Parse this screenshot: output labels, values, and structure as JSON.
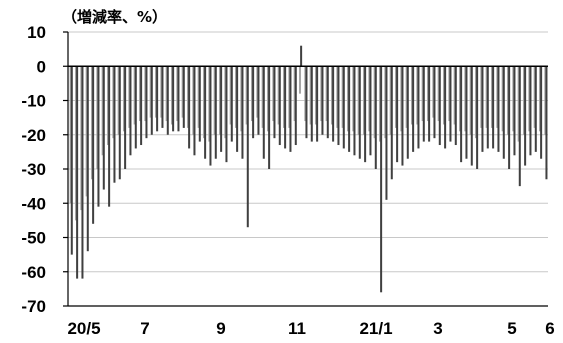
{
  "chart_data": {
    "type": "bar",
    "ylabel": "（増減率、%）",
    "ylim": [
      -70,
      10
    ],
    "yticks": [
      10,
      0,
      -10,
      -20,
      -30,
      -40,
      -50,
      -60,
      -70
    ],
    "xtick_labels": [
      "20/5",
      "7",
      "9",
      "11",
      "21/1",
      "3",
      "5",
      "6"
    ],
    "colors": {
      "dark": "#404040",
      "light": "#a6a6a6"
    },
    "series": [
      {
        "name": "",
        "color": "dark",
        "values": [
          -55,
          -62,
          -62,
          -54,
          -46,
          -41,
          -36,
          -41,
          -34,
          -33,
          -30,
          -26,
          -24,
          -23,
          -21,
          -20,
          -19,
          -18,
          -20,
          -19,
          -19,
          -18,
          -24,
          -26,
          -22,
          -27,
          -29,
          -27,
          -25,
          -28,
          -22,
          -25,
          -27,
          -47,
          -21,
          -20,
          -27,
          -30,
          -21,
          -23,
          -24,
          -25,
          -23,
          6,
          -21,
          -22,
          -22,
          -20,
          -21,
          -22,
          -23,
          -24,
          -25,
          -26,
          -27,
          -28,
          -26,
          -30,
          -66,
          -39,
          -33,
          -28,
          -29,
          -27,
          -25,
          -24,
          -22,
          -22,
          -21,
          -23,
          -24,
          -22,
          -23,
          -28,
          -27,
          -29,
          -30,
          -25,
          -24,
          -24,
          -25,
          -27,
          -30,
          -26,
          -35,
          -29,
          -26,
          -25,
          -27,
          -33
        ]
      },
      {
        "name": "",
        "color": "light",
        "values": [
          -40,
          -45,
          -42,
          -38,
          -33,
          -30,
          -26,
          -23,
          -21,
          -20,
          -19,
          -18,
          -17,
          -16,
          -16,
          -15,
          -15,
          -15,
          -16,
          -17,
          -16,
          -15,
          -18,
          -20,
          -18,
          -21,
          -22,
          -20,
          -20,
          -21,
          -17,
          -18,
          -19,
          -17,
          -16,
          -15,
          -18,
          -19,
          -16,
          -17,
          -18,
          -18,
          -16,
          -8,
          -16,
          -17,
          -17,
          -16,
          -16,
          -17,
          -18,
          -18,
          -19,
          -19,
          -20,
          -20,
          -19,
          -21,
          -22,
          -21,
          -20,
          -18,
          -19,
          -18,
          -17,
          -17,
          -16,
          -16,
          -15,
          -16,
          -17,
          -16,
          -17,
          -19,
          -19,
          -20,
          -21,
          -18,
          -18,
          -18,
          -18,
          -19,
          -20,
          -19,
          -22,
          -20,
          -19,
          -18,
          -19,
          -20
        ]
      }
    ]
  }
}
